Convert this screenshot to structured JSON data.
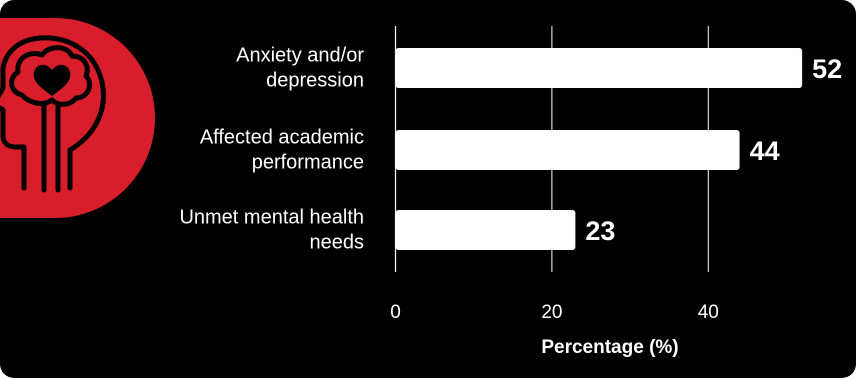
{
  "chart_data": {
    "type": "bar",
    "orientation": "horizontal",
    "categories": [
      [
        "Anxiety and/or",
        "depression"
      ],
      [
        "Affected academic",
        "performance"
      ],
      [
        "Unmet mental health",
        "needs"
      ]
    ],
    "values": [
      52,
      44,
      23
    ],
    "value_labels": [
      "52",
      "44",
      "23"
    ],
    "xlabel": "Percentage (%)",
    "ylabel": "",
    "title": "",
    "xlim": [
      0,
      55
    ],
    "xticks": [
      0,
      20,
      40
    ],
    "xtick_labels": [
      "0",
      "20",
      "40"
    ],
    "grid": "vertical gridlines at ticks",
    "legend": "none"
  },
  "theme": {
    "background": "#000000",
    "bar_color": "#ffffff",
    "text_color": "#ffffff",
    "accent_red": "#d81e2a",
    "grid_color": "#ffffff"
  },
  "icon": {
    "name": "brain-heart-head-icon"
  }
}
